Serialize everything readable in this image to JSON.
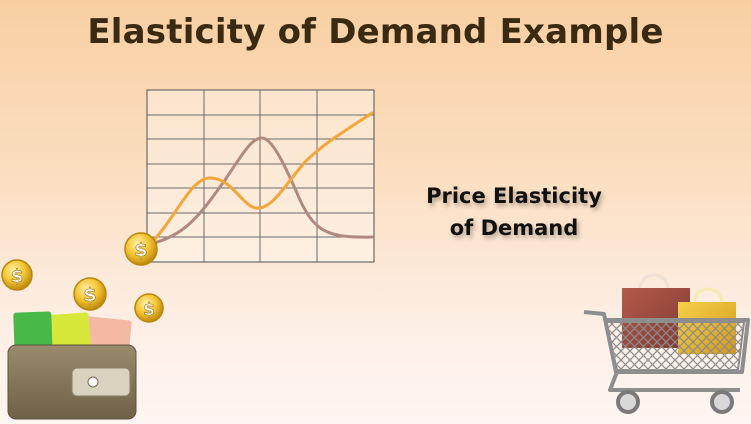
{
  "title": "Elasticity of Demand Example",
  "caption": {
    "line1": "Price Elasticity",
    "line2": "of Demand"
  },
  "illustration": {
    "chart": {
      "grid_columns": 4,
      "grid_rows": 7,
      "line_colors": [
        "#f3a63a",
        "#b08a80"
      ]
    },
    "icons": [
      "coin-icon",
      "dollar-coin-icon",
      "wallet-icon",
      "shopping-cart-icon",
      "shopping-bag-icon"
    ],
    "colors": {
      "coin": "#f2c12e",
      "wallet": "#8a7b5f",
      "cart": "#8a8a8a",
      "bag_red": "#9b4a3e",
      "bag_yellow": "#e7b52e"
    }
  }
}
